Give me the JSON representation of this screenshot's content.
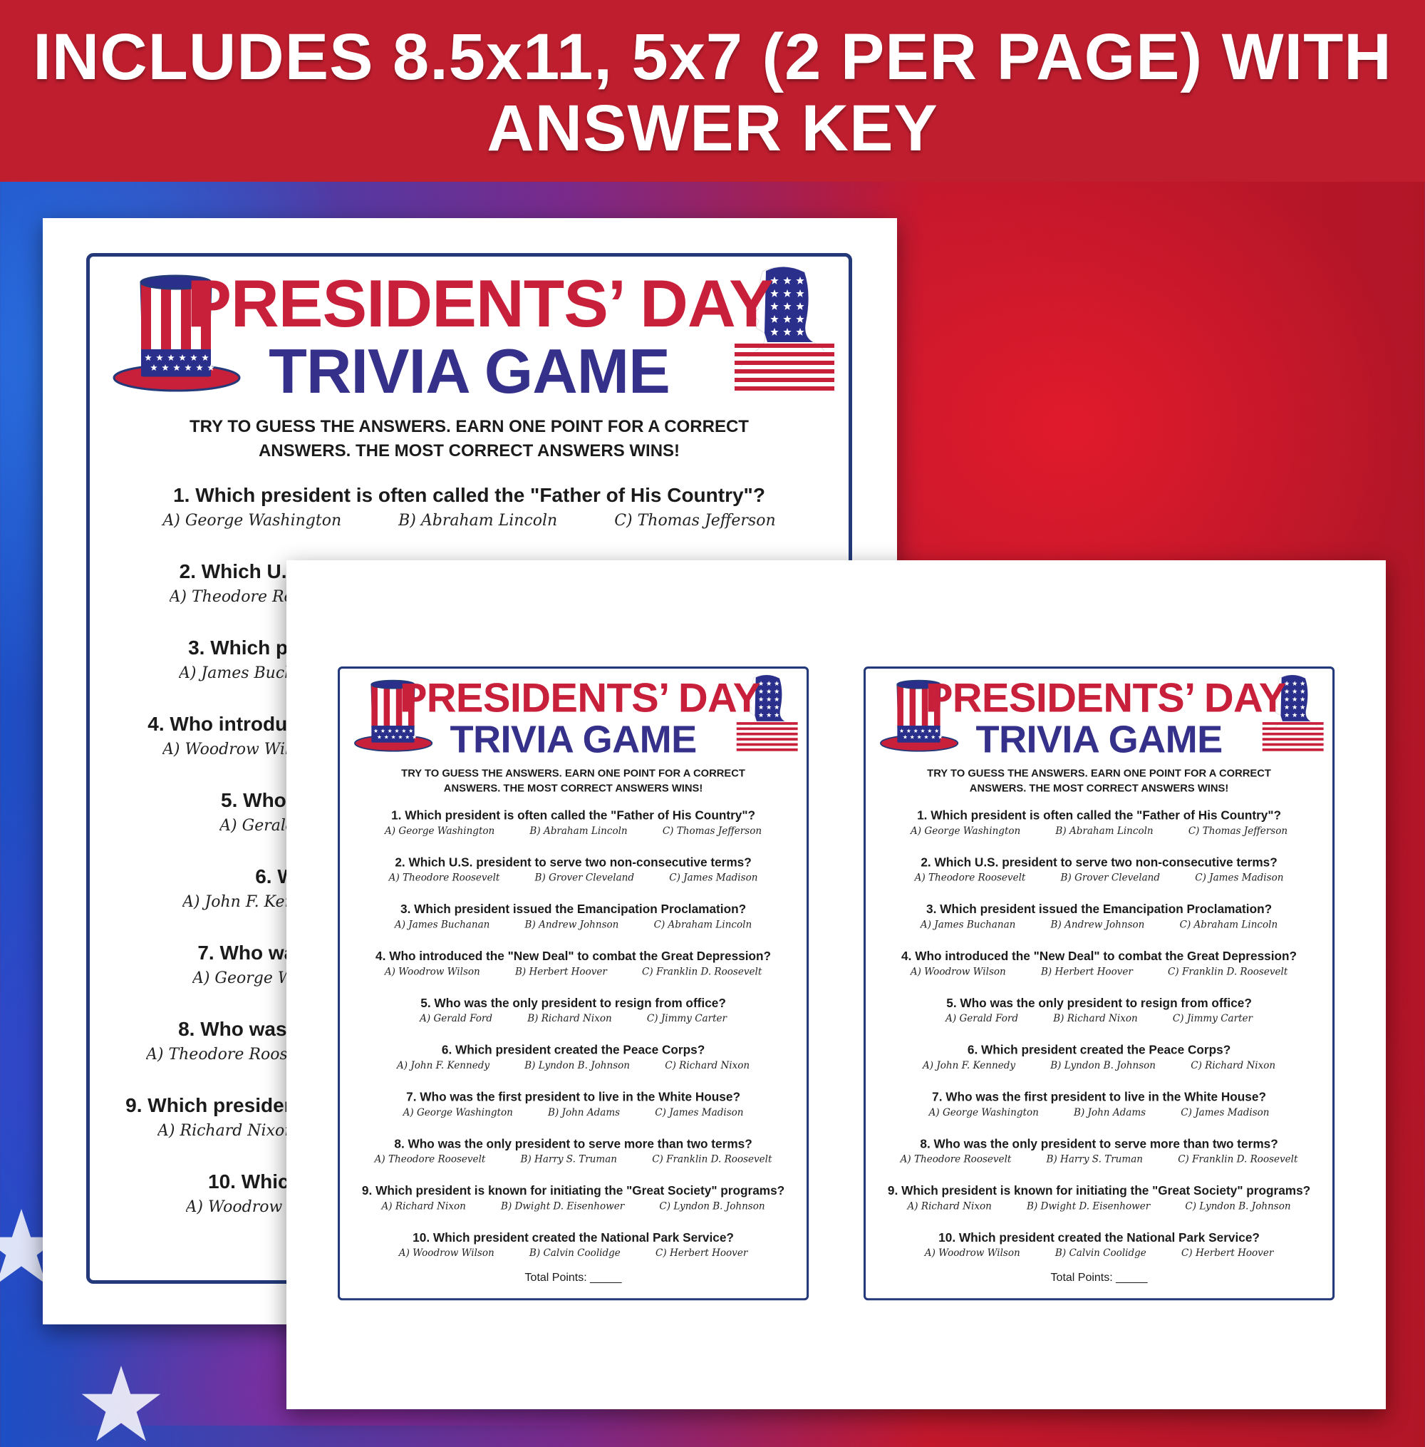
{
  "banner": {
    "line1": "INCLUDES 8.5x11, 5x7 (2 PER PAGE) WITH",
    "line2": "ANSWER KEY"
  },
  "colors": {
    "banner": "#bf1e2e",
    "title_red": "#c8203a",
    "title_navy": "#35318a",
    "card_border": "#23397a"
  },
  "icons": [
    "uncle-sam-hat-icon",
    "flag-president-silhouette-icon",
    "star-icon"
  ],
  "trivia": {
    "title_line1": "PRESIDENTS’ DAY",
    "title_line2": "TRIVIA GAME",
    "instructions_line1": "TRY TO GUESS THE ANSWERS. EARN ONE POINT FOR A CORRECT",
    "instructions_line2": "ANSWERS. THE MOST CORRECT ANSWERS WINS!",
    "questions": [
      {
        "q": "1. Which president is often called the \"Father of His Country\"?",
        "a": [
          "A) George Washington",
          "B) Abraham Lincoln",
          "C) Thomas Jefferson"
        ]
      },
      {
        "q": "2. Which U.S. president to serve two non-consecutive terms?",
        "a": [
          "A) Theodore Roosevelt",
          "B) Grover Cleveland",
          "C) James Madison"
        ]
      },
      {
        "q": "3. Which president issued the Emancipation Proclamation?",
        "a": [
          "A) James Buchanan",
          "B) Andrew Johnson",
          "C) Abraham Lincoln"
        ]
      },
      {
        "q": "4. Who introduced the \"New Deal\" to combat the Great Depression?",
        "a": [
          "A) Woodrow Wilson",
          "B) Herbert Hoover",
          "C) Franklin D. Roosevelt"
        ]
      },
      {
        "q": "5. Who was the only president to resign from office?",
        "a": [
          "A) Gerald Ford",
          "B) Richard Nixon",
          "C) Jimmy Carter"
        ]
      },
      {
        "q": "6. Which president created the Peace Corps?",
        "a": [
          "A) John F. Kennedy",
          "B) Lyndon B. Johnson",
          "C) Richard Nixon"
        ]
      },
      {
        "q": "7. Who was the first president to live in the White House?",
        "a": [
          "A) George Washington",
          "B) John Adams",
          "C) James Madison"
        ]
      },
      {
        "q": "8. Who was the only president to serve more than two terms?",
        "a": [
          "A) Theodore Roosevelt",
          "B) Harry S. Truman",
          "C) Franklin D. Roosevelt"
        ]
      },
      {
        "q": "9. Which president is known for initiating the \"Great Society\" programs?",
        "a": [
          "A) Richard Nixon",
          "B) Dwight D. Eisenhower",
          "C) Lyndon B. Johnson"
        ]
      },
      {
        "q": "10. Which president created the National Park Service?",
        "a": [
          "A) Woodrow Wilson",
          "B) Calvin Coolidge",
          "C) Herbert Hoover"
        ]
      }
    ],
    "total_label": "Total Points: _____"
  }
}
